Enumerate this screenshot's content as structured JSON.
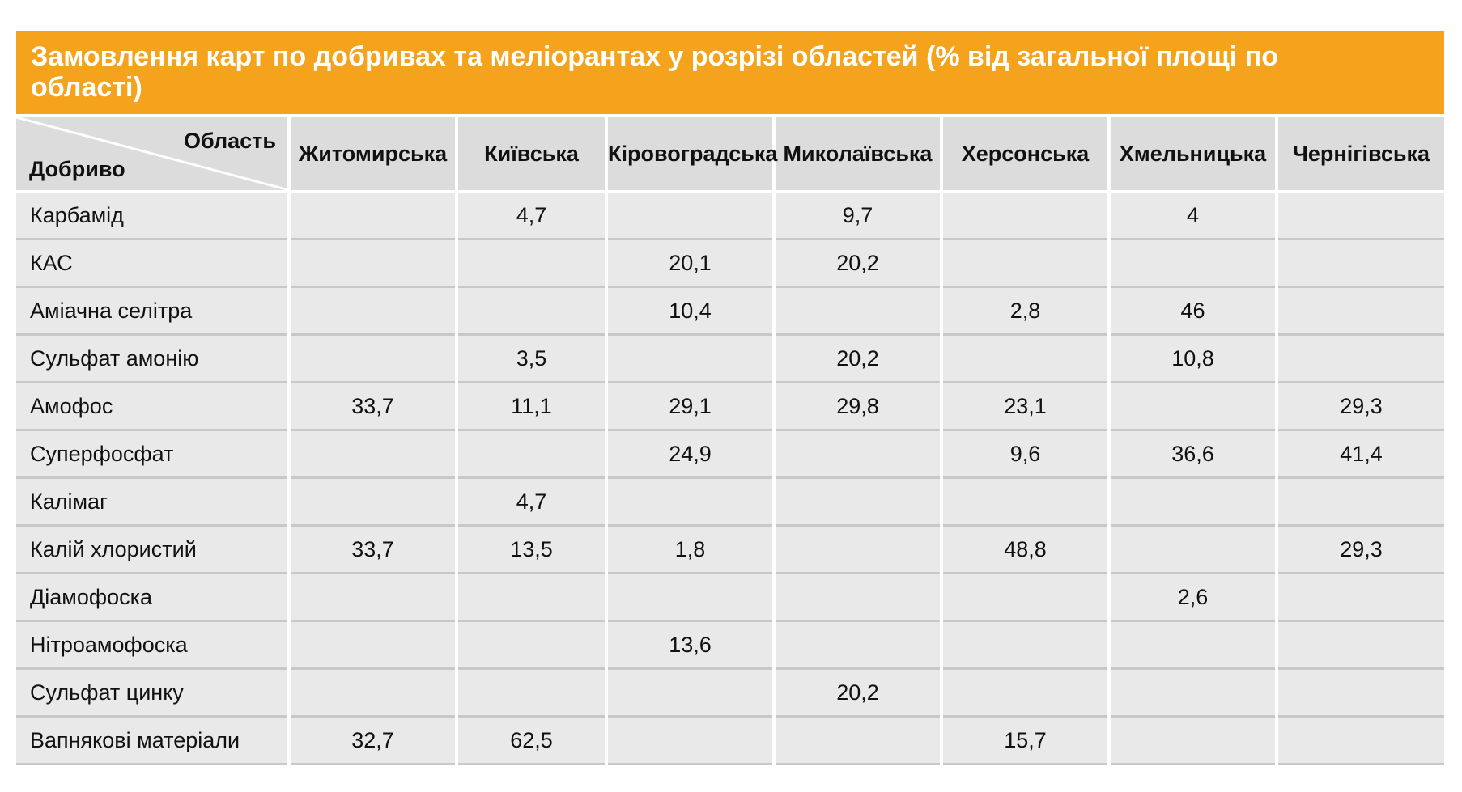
{
  "header": {
    "title": "Замовлення карт по добривах та меліорантах у розрізі областей (% від загальної площі по області)"
  },
  "table": {
    "corner": {
      "column_axis": "Область",
      "row_axis": "Добриво"
    },
    "columns": [
      "Житомирська",
      "Київська",
      "Кіровоградська",
      "Миколаївська",
      "Херсонська",
      "Хмельницька",
      "Чернігівська"
    ],
    "rows": [
      [
        "Карбамід",
        null,
        "4,7",
        null,
        "9,7",
        null,
        "4",
        null
      ],
      [
        "КАС",
        null,
        null,
        "20,1",
        "20,2",
        null,
        null,
        null
      ],
      [
        "Аміачна селітра",
        null,
        null,
        "10,4",
        null,
        "2,8",
        "46",
        null
      ],
      [
        "Сульфат амонію",
        null,
        "3,5",
        null,
        "20,2",
        null,
        "10,8",
        null
      ],
      [
        "Амофос",
        "33,7",
        "11,1",
        "29,1",
        "29,8",
        "23,1",
        null,
        "29,3"
      ],
      [
        "Суперфосфат",
        null,
        null,
        "24,9",
        null,
        "9,6",
        "36,6",
        "41,4"
      ],
      [
        "Калімаг",
        null,
        "4,7",
        null,
        null,
        null,
        null,
        null
      ],
      [
        "Калій хлористий",
        "33,7",
        "13,5",
        "1,8",
        null,
        "48,8",
        null,
        "29,3"
      ],
      [
        "Діамофоска",
        null,
        null,
        null,
        null,
        null,
        "2,6",
        null
      ],
      [
        "Нітроамофоска",
        null,
        null,
        "13,6",
        null,
        null,
        null,
        null
      ],
      [
        "Сульфат цинку",
        null,
        null,
        null,
        "20,2",
        null,
        null,
        null
      ],
      [
        "Вапнякові матеріали",
        "32,7",
        "62,5",
        null,
        null,
        "15,7",
        null,
        null
      ]
    ]
  }
}
